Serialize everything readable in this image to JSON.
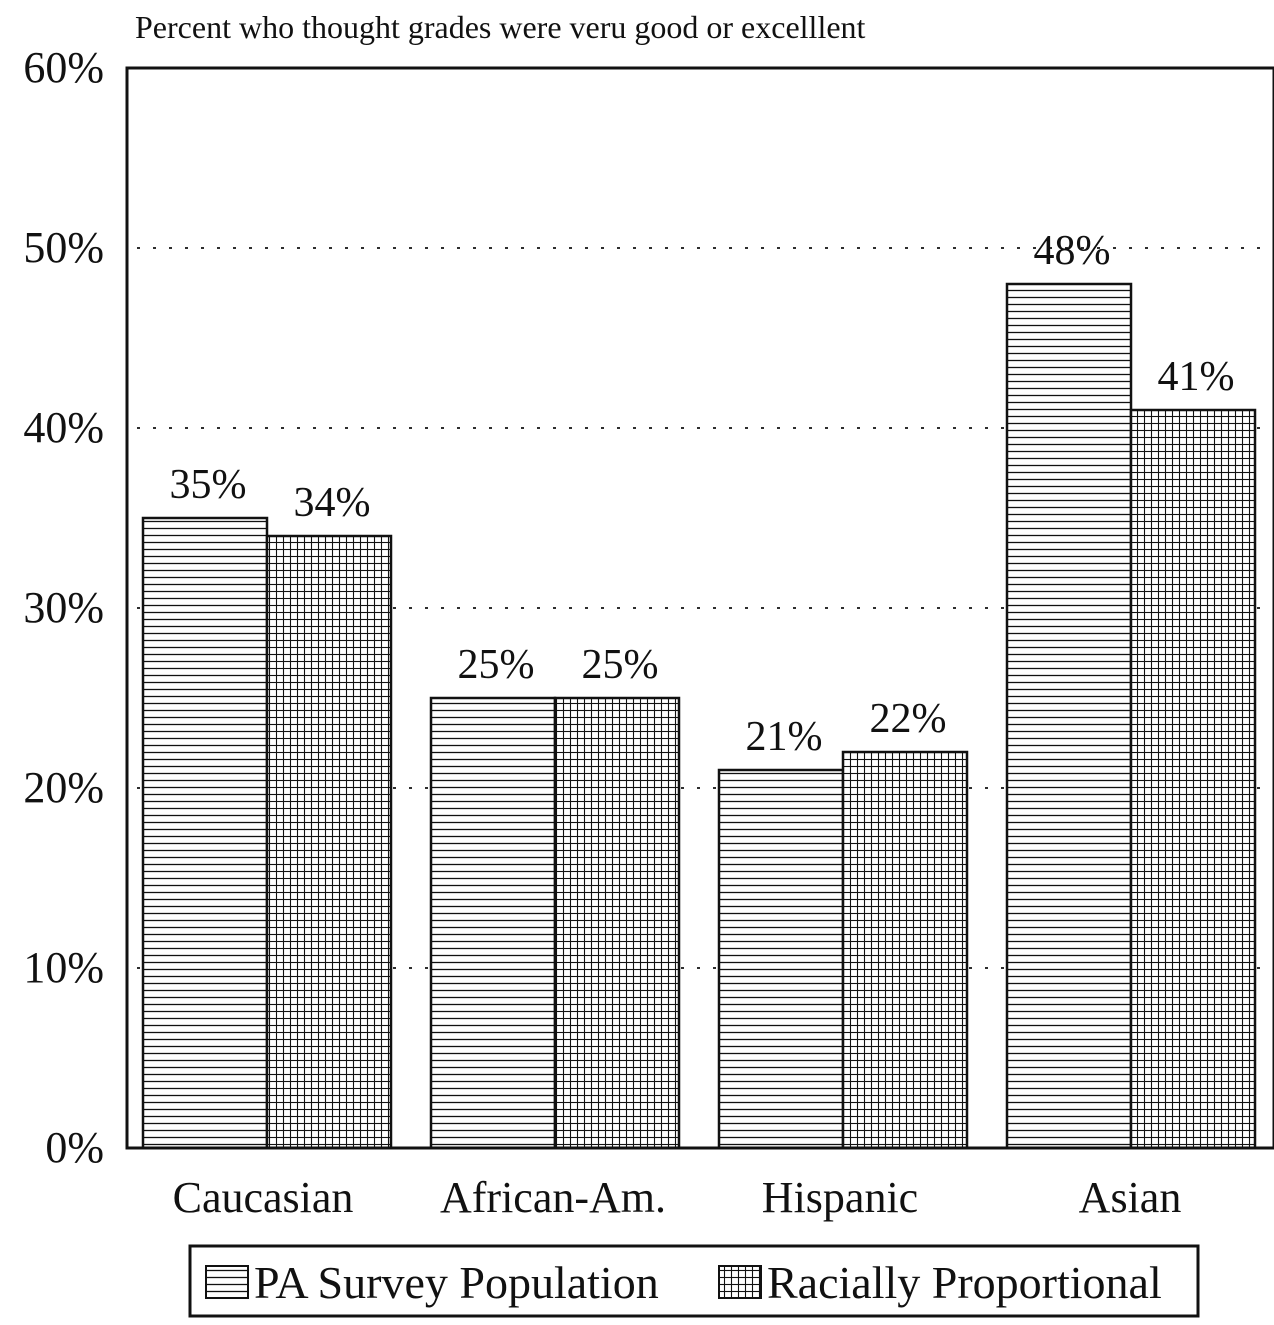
{
  "chart_data": {
    "type": "bar",
    "title": "Percent who thought grades were veru good or excelllent",
    "xlabel": "",
    "ylabel": "",
    "categories": [
      "Caucasian",
      "African-Am.",
      "Hispanic",
      "Asian"
    ],
    "series": [
      {
        "name": "PA Survey Population",
        "values": [
          35,
          25,
          21,
          48
        ],
        "labels": [
          "35%",
          "25%",
          "21%",
          "48%"
        ],
        "pattern": "horizontal-lines"
      },
      {
        "name": "Racially Proportional",
        "values": [
          34,
          25,
          22,
          41
        ],
        "labels": [
          "34%",
          "25%",
          "22%",
          "41%"
        ],
        "pattern": "grid"
      }
    ],
    "ylim": [
      0,
      60
    ],
    "yticks": [
      0,
      10,
      20,
      30,
      40,
      50,
      60
    ],
    "ytick_labels": [
      "0%",
      "10%",
      "20%",
      "30%",
      "40%",
      "50%",
      "60%"
    ],
    "grid": "dotted horizontal",
    "legend_position": "bottom"
  },
  "colors": {
    "ink": "#111111",
    "background": "#ffffff"
  }
}
